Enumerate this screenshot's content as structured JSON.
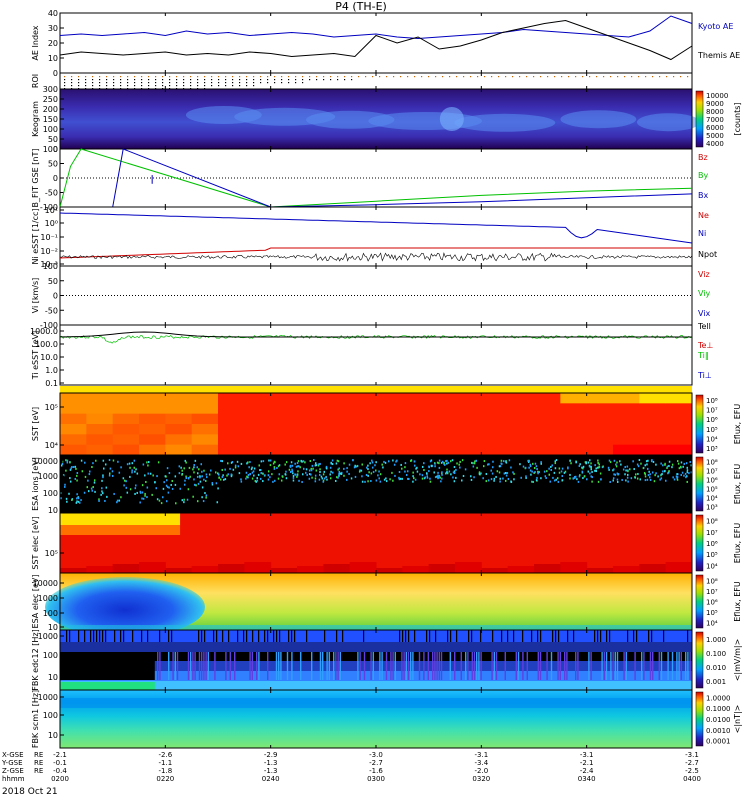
{
  "title": "P4 (TH-E)",
  "date_label": "2018 Oct 21",
  "chart_data": [
    {
      "type": "line",
      "panel": "ae",
      "ylabel": "AE Index",
      "ylim": [
        0,
        40
      ],
      "yticks": [
        "0",
        "10",
        "20",
        "30",
        "40"
      ],
      "series": [
        {
          "name": "Kyoto AE",
          "color": "#0000c0",
          "x": [
            0,
            4,
            8,
            12,
            16,
            20,
            24,
            28,
            32,
            36,
            40,
            44,
            48,
            52,
            56,
            60,
            64,
            68,
            72,
            76,
            80,
            84,
            88,
            92,
            96,
            100,
            104,
            108,
            112,
            116,
            120
          ],
          "y": [
            25,
            26,
            25,
            26,
            27,
            25,
            28,
            26,
            27,
            25,
            26,
            27,
            26,
            24,
            25,
            26,
            24,
            23,
            24,
            25,
            26,
            27,
            29,
            28,
            27,
            26,
            25,
            24,
            28,
            38,
            33
          ]
        },
        {
          "name": "Themis AE",
          "color": "#000000",
          "x": [
            0,
            4,
            8,
            12,
            16,
            20,
            24,
            28,
            32,
            36,
            40,
            44,
            48,
            52,
            56,
            60,
            64,
            68,
            72,
            76,
            80,
            84,
            88,
            92,
            96,
            100,
            104,
            108,
            112,
            116,
            120
          ],
          "y": [
            12,
            14,
            13,
            12,
            13,
            14,
            12,
            13,
            12,
            14,
            13,
            11,
            12,
            13,
            11,
            25,
            20,
            24,
            16,
            18,
            22,
            27,
            30,
            33,
            35,
            30,
            25,
            20,
            15,
            9,
            18
          ]
        }
      ]
    },
    {
      "type": "scatter",
      "panel": "roi",
      "ylabel": "ROI",
      "note": "dotted footprint rows"
    },
    {
      "type": "heatmap",
      "panel": "keogram",
      "ylabel": "Keogram",
      "ylim": [
        0,
        300
      ],
      "yticks": [
        "0",
        "50",
        "100",
        "150",
        "200",
        "250",
        "300"
      ],
      "colorbar": {
        "label": "[counts]",
        "ticks": [
          "4000",
          "5000",
          "6000",
          "7000",
          "8000",
          "9000",
          "10000"
        ]
      }
    },
    {
      "type": "line",
      "panel": "bfield",
      "ylabel": "B_FIT GSE [nT]",
      "ylim": [
        -100,
        100
      ],
      "yticks": [
        "-100",
        "-50",
        "0",
        "50",
        "100"
      ],
      "series": [
        {
          "name": "Bz",
          "color": "#d00000",
          "x": [
            0,
            120
          ],
          "y": [
            -100,
            -100
          ]
        },
        {
          "name": "By",
          "color": "#00c000",
          "x": [
            0,
            2,
            4,
            40,
            60,
            80,
            100,
            120
          ],
          "y": [
            -100,
            40,
            100,
            -100,
            -80,
            -60,
            -45,
            -35
          ]
        },
        {
          "name": "Bx",
          "color": "#0000c0",
          "x": [
            0,
            10,
            12,
            40,
            60,
            80,
            100,
            120
          ],
          "y": [
            -100,
            -100,
            100,
            -100,
            -92,
            -82,
            -68,
            -55
          ]
        }
      ]
    },
    {
      "type": "line",
      "panel": "density",
      "ylabel": "Ni eSST [1/cc]",
      "yticks": [
        "10⁻³",
        "10⁻²",
        "10⁻¹",
        "10⁰",
        "10¹"
      ],
      "series": [
        {
          "name": "Ne",
          "color": "#d00000"
        },
        {
          "name": "Ni",
          "color": "#0000c0"
        },
        {
          "name": "Npot",
          "color": "#000000"
        }
      ]
    },
    {
      "type": "line",
      "panel": "velocity",
      "ylabel": "Vi [km/s]",
      "ylim": [
        -100,
        100
      ],
      "yticks": [
        "-100",
        "-50",
        "0",
        "50",
        "100"
      ],
      "series": [
        {
          "name": "Viz",
          "color": "#d00000"
        },
        {
          "name": "Viy",
          "color": "#00c000"
        },
        {
          "name": "Vix",
          "color": "#0000c0"
        }
      ]
    },
    {
      "type": "line",
      "panel": "temp",
      "ylabel": "Ti eSST [eV]",
      "yticks": [
        "0.1",
        "1.0",
        "10.0",
        "100.0",
        "1000.0"
      ],
      "series": [
        {
          "name": "Tell",
          "color": "#000000"
        },
        {
          "name": "Te⊥",
          "color": "#d00000"
        },
        {
          "name": "Ti‖",
          "color": "#00c000"
        },
        {
          "name": "Ti⊥",
          "color": "#0000c0"
        }
      ]
    },
    {
      "type": "heatmap",
      "panel": "sst_i",
      "ylabel": "SST [eV]",
      "yticks": [
        "10⁵",
        "10⁴"
      ],
      "colorbar": {
        "label": "Eflux, EFU",
        "ticks": [
          "10³",
          "10⁴",
          "10⁵",
          "10⁶",
          "10⁷",
          "10⁸"
        ]
      }
    },
    {
      "type": "heatmap",
      "panel": "esa_i",
      "ylabel": "ESA ions [eV]",
      "yticks": [
        "10",
        "100",
        "1000",
        "10000"
      ],
      "colorbar": {
        "label": "Eflux, EFU",
        "ticks": [
          "10³",
          "10⁴",
          "10⁵",
          "10⁶",
          "10⁷",
          "10⁸"
        ]
      }
    },
    {
      "type": "heatmap",
      "panel": "sst_e",
      "ylabel": "SST elec [eV]",
      "yticks": [
        "10⁵"
      ],
      "colorbar": {
        "label": "Eflux, EFU",
        "ticks": [
          "10⁴",
          "10⁵",
          "10⁶",
          "10⁷",
          "10⁸"
        ]
      }
    },
    {
      "type": "heatmap",
      "panel": "esa_e",
      "ylabel": "ESA elec [eV]",
      "yticks": [
        "10",
        "100",
        "1000",
        "10000"
      ],
      "colorbar": {
        "label": "Eflux, EFU",
        "ticks": [
          "10⁴",
          "10⁵",
          "10⁶",
          "10⁷",
          "10⁸"
        ]
      }
    },
    {
      "type": "heatmap",
      "panel": "fbk_e",
      "ylabel": "FBK edc12 [Hz]",
      "yticks": [
        "10",
        "100",
        "1000"
      ],
      "colorbar": {
        "label": "<|mV/m|>",
        "ticks": [
          "0.001",
          "0.010",
          "0.100",
          "1.000"
        ]
      }
    },
    {
      "type": "heatmap",
      "panel": "fbk_b",
      "ylabel": "FBK scm1 [Hz]",
      "yticks": [
        "10",
        "100",
        "1000"
      ],
      "colorbar": {
        "label": "<|nT|>",
        "ticks": [
          "0.0001",
          "0.0010",
          "0.0100",
          "0.1000",
          "1.0000"
        ]
      }
    }
  ],
  "xaxis": {
    "row_labels": [
      "X-GSE",
      "Y-GSE",
      "Z-GSE",
      "hhmm",
      ""
    ],
    "row_units": [
      "RE",
      "RE",
      "RE",
      "",
      ""
    ],
    "columns": [
      [
        "-2.1",
        "-0.1",
        "-0.4",
        "0200"
      ],
      [
        "-2.6",
        "-1.1",
        "-1.8",
        "0220"
      ],
      [
        "-2.9",
        "-1.3",
        "-1.3",
        "0240"
      ],
      [
        "-3.0",
        "-2.7",
        "-1.6",
        "0300"
      ],
      [
        "-3.1",
        "-3.4",
        "-2.0",
        "0320"
      ],
      [
        "-3.1",
        "-2.1",
        "-2.4",
        "0340"
      ],
      [
        "-3.1",
        "-2.7",
        "-2.5",
        "0400"
      ]
    ]
  }
}
